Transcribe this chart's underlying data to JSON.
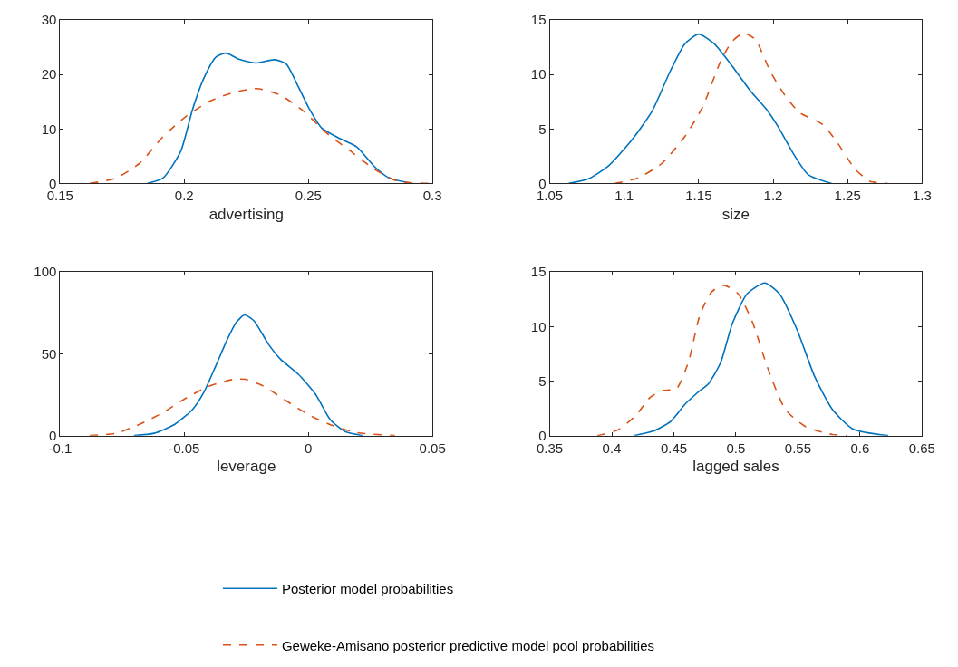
{
  "chart_data": [
    {
      "type": "line",
      "xlabel": "advertising",
      "xlim": [
        0.15,
        0.3
      ],
      "xticks": [
        0.15,
        0.2,
        0.25,
        0.3
      ],
      "ylim": [
        0,
        30
      ],
      "yticks": [
        0,
        10,
        20,
        30
      ],
      "legend": "bottom",
      "series": [
        {
          "name": "Posterior model probabilities",
          "color": "#0072bd",
          "line_style": "solid",
          "x": [
            0.185,
            0.1915,
            0.1986,
            0.2033,
            0.208,
            0.2128,
            0.2169,
            0.222,
            0.2287,
            0.2364,
            0.2411,
            0.2459,
            0.2506,
            0.2553,
            0.2624,
            0.2695,
            0.2766,
            0.2825,
            0.292
          ],
          "values": [
            0,
            1,
            5.9,
            13.5,
            19.4,
            23.2,
            23.9,
            22.8,
            22.1,
            22.7,
            21.9,
            17.8,
            13.5,
            10.2,
            8.3,
            6.7,
            3.1,
            1.0,
            0
          ]
        },
        {
          "name": "Geweke-Amisano posterior predictive model pool probabilities",
          "color": "#d95319",
          "line_style": "dashed",
          "x": [
            0.162,
            0.1726,
            0.182,
            0.1915,
            0.201,
            0.2104,
            0.2199,
            0.2293,
            0.2388,
            0.2482,
            0.2577,
            0.2671,
            0.2766,
            0.286,
            0.299
          ],
          "values": [
            0,
            1,
            3.7,
            8.6,
            12.4,
            15.1,
            16.7,
            17.4,
            16.2,
            13.2,
            9.1,
            5.9,
            2.6,
            0.4,
            0
          ]
        }
      ]
    },
    {
      "type": "line",
      "xlabel": "size",
      "xlim": [
        1.05,
        1.3
      ],
      "xticks": [
        1.05,
        1.1,
        1.15,
        1.2,
        1.25,
        1.3
      ],
      "ylim": [
        0,
        15
      ],
      "yticks": [
        0,
        5,
        10,
        15
      ],
      "series": [
        {
          "color": "#0072bd",
          "line_style": "solid",
          "x": [
            1.0628,
            1.0756,
            1.0894,
            1.1052,
            1.119,
            1.1309,
            1.1407,
            1.15,
            1.1605,
            1.1723,
            1.1841,
            1.196,
            1.2038,
            1.2137,
            1.2236,
            1.2393
          ],
          "values": [
            0,
            0.4,
            1.6,
            4.0,
            6.7,
            10.3,
            12.8,
            13.7,
            12.8,
            10.8,
            8.6,
            6.7,
            5.1,
            2.7,
            0.8,
            0
          ]
        },
        {
          "color": "#d95319",
          "line_style": "dashed",
          "x": [
            1.0934,
            1.1092,
            1.125,
            1.1407,
            1.1526,
            1.1644,
            1.1723,
            1.1802,
            1.1881,
            1.198,
            1.2078,
            1.2177,
            1.2334,
            1.2433,
            1.2551,
            1.265,
            1.2768
          ],
          "values": [
            0,
            0.5,
            1.8,
            4.3,
            7.0,
            11.1,
            13.0,
            13.8,
            13.2,
            10.3,
            8.1,
            6.5,
            5.4,
            3.7,
            1.3,
            0.2,
            0
          ]
        }
      ]
    },
    {
      "type": "line",
      "xlabel": "leverage",
      "xlim": [
        -0.1,
        0.05
      ],
      "xticks": [
        -0.1,
        -0.05,
        0,
        0.05
      ],
      "ylim": [
        0,
        100
      ],
      "yticks": [
        0,
        50,
        100
      ],
      "series": [
        {
          "color": "#0072bd",
          "line_style": "solid",
          "x": [
            -0.0703,
            -0.0621,
            -0.0538,
            -0.0467,
            -0.042,
            -0.0372,
            -0.0325,
            -0.029,
            -0.0257,
            -0.0219,
            -0.016,
            -0.0112,
            -0.0041,
            0.003,
            0.0089,
            0.0148,
            0.0219
          ],
          "values": [
            0,
            1.4,
            6.9,
            15.9,
            26.8,
            43,
            59.3,
            69.3,
            73.8,
            70.2,
            55.7,
            46.7,
            37.6,
            25,
            9.6,
            2.4,
            0
          ]
        },
        {
          "color": "#d95319",
          "line_style": "dashed",
          "x": [
            -0.0881,
            -0.0774,
            -0.068,
            -0.0585,
            -0.0491,
            -0.0396,
            -0.0301,
            -0.0254,
            -0.0183,
            -0.0089,
            0.0006,
            0.01,
            0.0195,
            0.0349
          ],
          "values": [
            0,
            1.4,
            6.9,
            14.1,
            23.1,
            30.4,
            34.4,
            34.4,
            30.4,
            21.3,
            12.3,
            6,
            1.8,
            0
          ]
        }
      ]
    },
    {
      "type": "line",
      "xlabel": "lagged sales",
      "xlim": [
        0.35,
        0.65
      ],
      "xticks": [
        0.35,
        0.4,
        0.45,
        0.5,
        0.55,
        0.6,
        0.65
      ],
      "ylim": [
        0,
        15
      ],
      "yticks": [
        0,
        5,
        10,
        15
      ],
      "series": [
        {
          "color": "#0072bd",
          "line_style": "solid",
          "x": [
            0.4178,
            0.4332,
            0.4474,
            0.4592,
            0.4687,
            0.4782,
            0.4877,
            0.4972,
            0.509,
            0.5232,
            0.5351,
            0.5493,
            0.5635,
            0.5777,
            0.5943,
            0.6227
          ],
          "values": [
            0,
            0.4,
            1.3,
            2.9,
            3.9,
            4.8,
            6.7,
            10.3,
            13.0,
            14.0,
            13.0,
            9.7,
            5.4,
            2.4,
            0.6,
            0
          ]
        },
        {
          "color": "#d95319",
          "line_style": "dashed",
          "x": [
            0.3882,
            0.4047,
            0.419,
            0.4308,
            0.4403,
            0.4521,
            0.4616,
            0.4711,
            0.4806,
            0.49,
            0.5019,
            0.5137,
            0.5256,
            0.5398,
            0.5564,
            0.5777,
            0.5896
          ],
          "values": [
            0,
            0.5,
            1.8,
            3.5,
            4.1,
            4.3,
            6.7,
            11.1,
            13.2,
            13.8,
            13.0,
            10.3,
            6.2,
            2.4,
            0.8,
            0.1,
            0
          ]
        }
      ]
    }
  ]
}
